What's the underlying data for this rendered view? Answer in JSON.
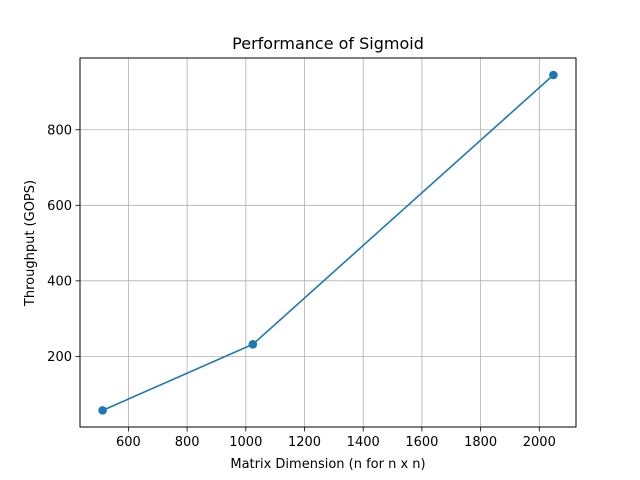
{
  "chart_data": {
    "type": "line",
    "title": "Performance of Sigmoid",
    "xlabel": "Matrix Dimension (n for n x n)",
    "ylabel": "Throughput (GOPS)",
    "x": [
      512,
      1024,
      2048
    ],
    "series": [
      {
        "values": [
          57,
          232,
          945
        ],
        "color": "#1f77b4",
        "marker": "circle"
      }
    ],
    "xlim": [
      435,
      2125
    ],
    "ylim": [
      13,
      990
    ],
    "xticks": [
      600,
      800,
      1000,
      1200,
      1400,
      1600,
      1800,
      2000
    ],
    "yticks": [
      200,
      400,
      600,
      800
    ],
    "xtick_labels": [
      "600",
      "800",
      "1000",
      "1200",
      "1400",
      "1600",
      "1800",
      "2000"
    ],
    "ytick_labels": [
      "200",
      "400",
      "600",
      "800"
    ],
    "grid": true
  }
}
